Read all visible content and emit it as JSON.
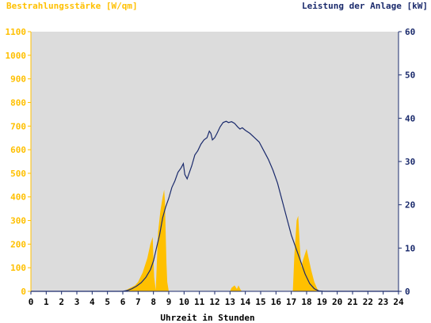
{
  "chart_data": {
    "type": "area",
    "title": "",
    "left_axis": {
      "label": "Bestrahlungsstärke [W/qm]",
      "range": [
        0,
        1100
      ],
      "ticks": [
        0,
        100,
        200,
        300,
        400,
        500,
        600,
        700,
        800,
        900,
        1000,
        1100
      ],
      "color": "#ffc000"
    },
    "right_axis": {
      "label": "Leistung der Anlage [kW]",
      "range": [
        0,
        60
      ],
      "ticks": [
        0,
        10,
        20,
        30,
        40,
        50,
        60
      ],
      "color": "#1a2a6c"
    },
    "x_axis": {
      "label": "Uhrzeit in Stunden",
      "range": [
        0,
        24
      ],
      "ticks": [
        0,
        1,
        2,
        3,
        4,
        5,
        6,
        7,
        8,
        9,
        10,
        11,
        12,
        13,
        14,
        15,
        16,
        17,
        18,
        19,
        20,
        21,
        22,
        23,
        24
      ]
    },
    "plot_background": "#dcdcdc",
    "series": [
      {
        "axis": "left",
        "style": "area",
        "color": "#ffc000",
        "points": [
          [
            0,
            0
          ],
          [
            6.0,
            0
          ],
          [
            6.2,
            5
          ],
          [
            6.5,
            15
          ],
          [
            6.8,
            25
          ],
          [
            7.0,
            40
          ],
          [
            7.3,
            80
          ],
          [
            7.6,
            140
          ],
          [
            7.8,
            200
          ],
          [
            7.95,
            230
          ],
          [
            8.05,
            60
          ],
          [
            8.15,
            5
          ],
          [
            8.3,
            250
          ],
          [
            8.45,
            340
          ],
          [
            8.6,
            400
          ],
          [
            8.7,
            430
          ],
          [
            8.75,
            380
          ],
          [
            8.8,
            250
          ],
          [
            8.85,
            120
          ],
          [
            8.9,
            40
          ],
          [
            9.0,
            0
          ],
          [
            13.0,
            0
          ],
          [
            13.1,
            15
          ],
          [
            13.3,
            25
          ],
          [
            13.45,
            10
          ],
          [
            13.55,
            25
          ],
          [
            13.7,
            5
          ],
          [
            13.8,
            0
          ],
          [
            17.1,
            0
          ],
          [
            17.2,
            150
          ],
          [
            17.35,
            300
          ],
          [
            17.45,
            320
          ],
          [
            17.55,
            200
          ],
          [
            17.65,
            100
          ],
          [
            17.75,
            130
          ],
          [
            17.9,
            160
          ],
          [
            18.0,
            180
          ],
          [
            18.1,
            150
          ],
          [
            18.3,
            90
          ],
          [
            18.5,
            40
          ],
          [
            18.7,
            10
          ],
          [
            18.85,
            0
          ],
          [
            24,
            0
          ]
        ]
      },
      {
        "axis": "right",
        "style": "line",
        "color": "#1a2a6c",
        "points": [
          [
            0,
            0
          ],
          [
            6.0,
            0
          ],
          [
            6.3,
            0.2
          ],
          [
            6.6,
            0.6
          ],
          [
            6.9,
            1.2
          ],
          [
            7.2,
            2
          ],
          [
            7.5,
            3.2
          ],
          [
            7.8,
            5
          ],
          [
            8.0,
            7
          ],
          [
            8.2,
            10
          ],
          [
            8.4,
            13
          ],
          [
            8.6,
            17
          ],
          [
            8.8,
            19.5
          ],
          [
            9.0,
            21.5
          ],
          [
            9.2,
            24
          ],
          [
            9.4,
            25.5
          ],
          [
            9.6,
            27.5
          ],
          [
            9.8,
            28.5
          ],
          [
            9.95,
            29.5
          ],
          [
            10.05,
            27
          ],
          [
            10.2,
            26
          ],
          [
            10.35,
            27.5
          ],
          [
            10.5,
            29
          ],
          [
            10.7,
            31.5
          ],
          [
            10.9,
            32.5
          ],
          [
            11.1,
            34
          ],
          [
            11.3,
            35
          ],
          [
            11.5,
            35.5
          ],
          [
            11.65,
            37
          ],
          [
            11.75,
            36.5
          ],
          [
            11.85,
            35
          ],
          [
            12.0,
            35.5
          ],
          [
            12.15,
            36.5
          ],
          [
            12.35,
            38
          ],
          [
            12.55,
            39
          ],
          [
            12.75,
            39.3
          ],
          [
            12.9,
            39
          ],
          [
            13.1,
            39.2
          ],
          [
            13.3,
            38.8
          ],
          [
            13.5,
            38
          ],
          [
            13.65,
            37.5
          ],
          [
            13.8,
            37.8
          ],
          [
            14.0,
            37.2
          ],
          [
            14.3,
            36.5
          ],
          [
            14.6,
            35.5
          ],
          [
            14.9,
            34.5
          ],
          [
            15.2,
            32.5
          ],
          [
            15.5,
            30.5
          ],
          [
            15.8,
            28
          ],
          [
            16.1,
            25
          ],
          [
            16.4,
            21
          ],
          [
            16.7,
            17
          ],
          [
            17.0,
            13
          ],
          [
            17.3,
            10
          ],
          [
            17.6,
            7
          ],
          [
            17.9,
            4
          ],
          [
            18.2,
            1.8
          ],
          [
            18.5,
            0.6
          ],
          [
            18.8,
            0.1
          ],
          [
            19.1,
            0
          ],
          [
            24,
            0
          ]
        ]
      }
    ]
  }
}
